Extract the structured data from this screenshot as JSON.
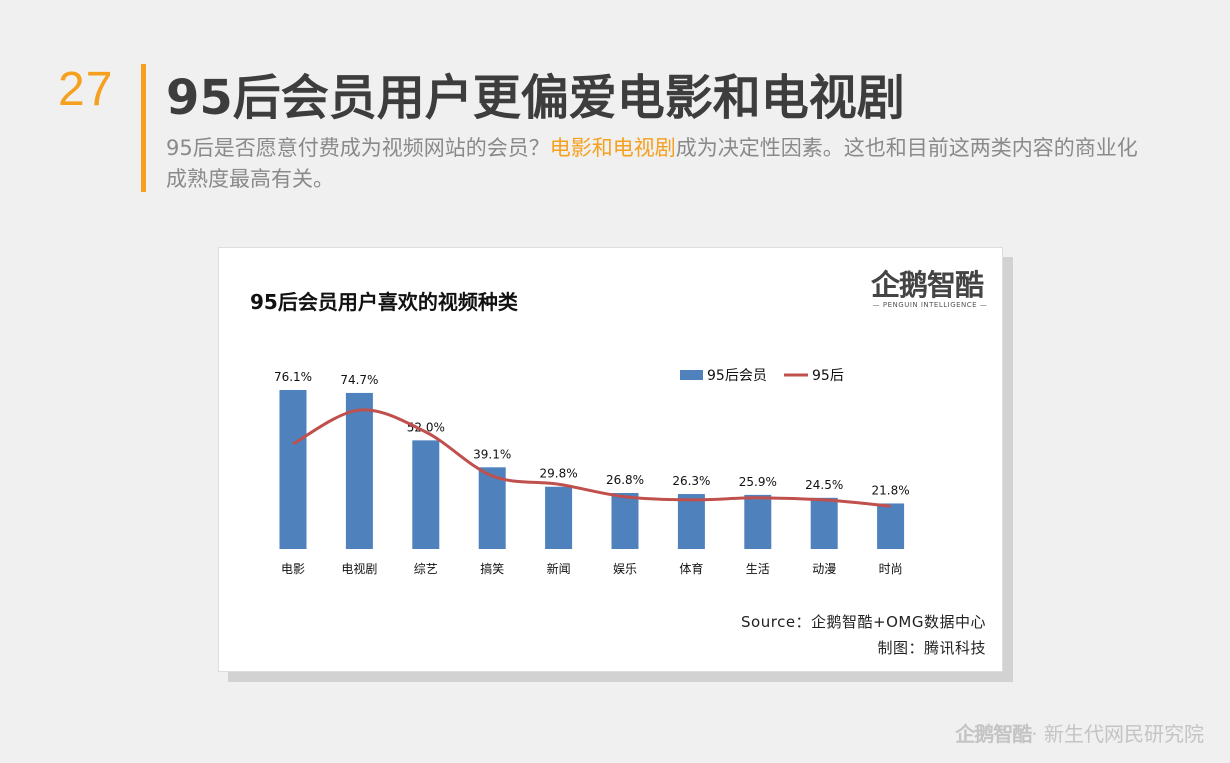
{
  "page": {
    "number": "27",
    "title": "95后会员用户更偏爱电影和电视剧",
    "subtitle_pre": "95后是否愿意付费成为视频网站的会员？",
    "subtitle_highlight": "电影和电视剧",
    "subtitle_post": "成为决定性因素。这也和目前这两类内容的商业化成熟度最高有关。",
    "accent_color": "#f5a01e",
    "footer_brand_logo": "企鹅智酷",
    "footer_brand_text": "· 新生代网民研究院"
  },
  "card": {
    "logo_text": "企鹅智酷",
    "logo_sub": "PENGUIN INTELLIGENCE",
    "source": "Source：企鹅智酷+OMG数据中心",
    "maker": "制图：腾讯科技"
  },
  "chart_data": {
    "type": "bar",
    "title": "95后会员用户喜欢的视频种类",
    "categories": [
      "电影",
      "电视剧",
      "综艺",
      "搞笑",
      "新闻",
      "娱乐",
      "体育",
      "生活",
      "动漫",
      "时尚"
    ],
    "series": [
      {
        "name": "95后会员",
        "type": "bar",
        "color": "#4f81bd",
        "values": [
          76.1,
          74.7,
          52.0,
          39.1,
          29.8,
          26.8,
          26.3,
          25.9,
          24.5,
          21.8
        ],
        "labels": [
          "76.1%",
          "74.7%",
          "52.0%",
          "39.1%",
          "29.8%",
          "26.8%",
          "26.3%",
          "25.9%",
          "24.5%",
          "21.8%"
        ]
      },
      {
        "name": "95后",
        "type": "line",
        "color": "#c0504d",
        "values": [
          50.3,
          66.5,
          56.0,
          35.0,
          31.0,
          25.0,
          23.5,
          24.5,
          23.5,
          20.5
        ]
      }
    ],
    "ylim": [
      0,
      80
    ],
    "grid": false,
    "legend": "top-right"
  }
}
